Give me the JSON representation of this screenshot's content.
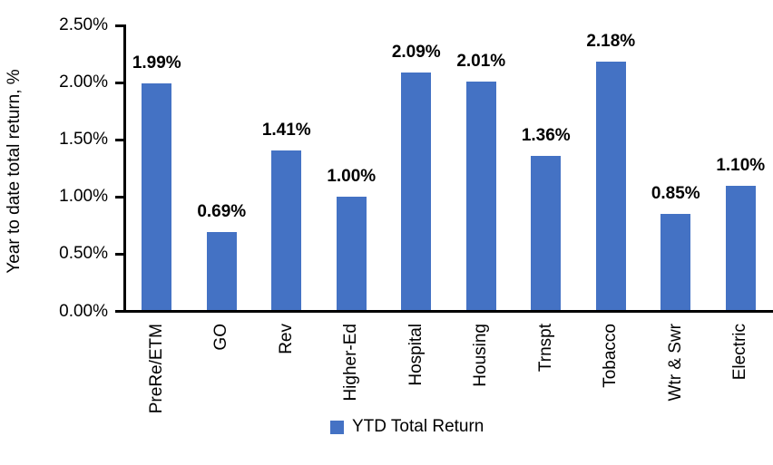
{
  "chart_data": {
    "type": "bar",
    "title": "",
    "xlabel": "",
    "ylabel": "Year to date total return, %",
    "categories": [
      "PreRe/ETM",
      "GO",
      "Rev",
      "Higher-Ed",
      "Hospital",
      "Housing",
      "Trnspt",
      "Tobacco",
      "Wtr & Swr",
      "Electric"
    ],
    "values": [
      1.99,
      0.69,
      1.41,
      1.0,
      2.09,
      2.01,
      1.36,
      2.18,
      0.85,
      1.1
    ],
    "data_labels": [
      "1.99%",
      "0.69%",
      "1.41%",
      "1.00%",
      "2.09%",
      "2.01%",
      "1.36%",
      "2.18%",
      "0.85%",
      "1.10%"
    ],
    "ylim": [
      0,
      2.5
    ],
    "y_ticks": [
      "0.00%",
      "0.50%",
      "1.00%",
      "1.50%",
      "2.00%",
      "2.50%"
    ],
    "grid": false,
    "legend": {
      "position": "bottom",
      "entries": [
        "YTD Total Return"
      ]
    }
  },
  "colors": {
    "bar": "#4472C4",
    "axis": "#000000",
    "text": "#000000",
    "background": "#FFFFFF"
  }
}
